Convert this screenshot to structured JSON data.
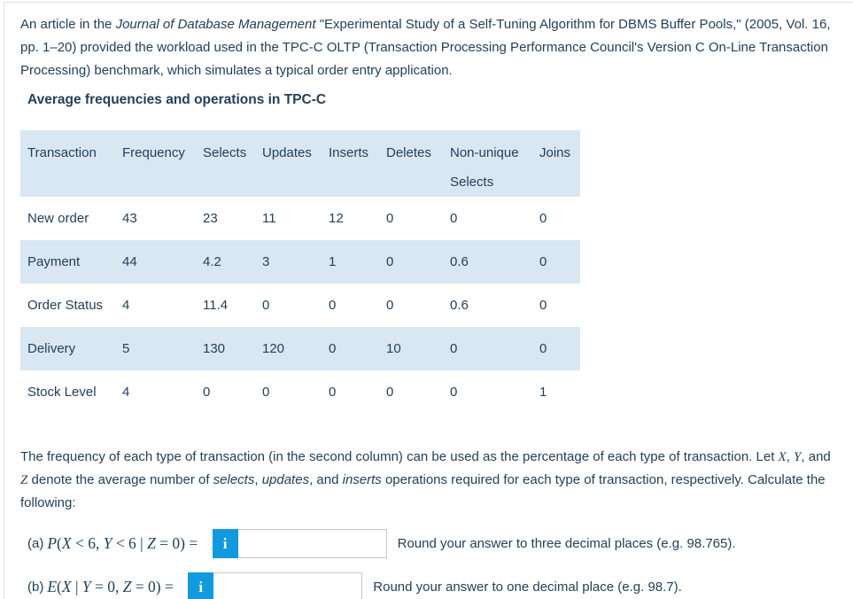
{
  "colors": {
    "text": "#234059",
    "table_stripe": "#d9e7f3",
    "info_button_blue": "#129ade",
    "input_border": "#c8c8c8",
    "page_border": "#e0e0e0"
  },
  "intro": {
    "segments": [
      {
        "t": "An article in the "
      },
      {
        "t": "Journal of Database Management",
        "i": true
      },
      {
        "t": " \"Experimental Study of a Self-Tuning Algorithm for DBMS Buffer Pools,\" (2005, Vol. 16, pp. 1–20) provided the workload used in the TPC-C OLTP (Transaction Processing Performance Council's Version C On-Line Transaction Processing) benchmark, which simulates a typical order entry application."
      }
    ]
  },
  "table_title": "Average frequencies and operations in TPC-C",
  "table": {
    "headers": [
      "Transaction",
      "Frequency",
      "Selects",
      "Updates",
      "Inserts",
      "Deletes",
      "Non-unique Selects",
      "Joins"
    ],
    "rows": [
      [
        "New order",
        "43",
        "23",
        "11",
        "12",
        "0",
        "0",
        "0"
      ],
      [
        "Payment",
        "44",
        "4.2",
        "3",
        "1",
        "0",
        "0.6",
        "0"
      ],
      [
        "Order Status",
        "4",
        "11.4",
        "0",
        "0",
        "0",
        "0.6",
        "0"
      ],
      [
        "Delivery",
        "5",
        "130",
        "120",
        "0",
        "10",
        "0",
        "0"
      ],
      [
        "Stock Level",
        "4",
        "0",
        "0",
        "0",
        "0",
        "0",
        "1"
      ]
    ]
  },
  "body": {
    "segments": [
      {
        "t": "The frequency of each type of transaction (in the second column) can be used as the percentage of each type of transaction. Let "
      },
      {
        "t": "X",
        "i": true,
        "m": true
      },
      {
        "t": ", "
      },
      {
        "t": "Y",
        "i": true,
        "m": true
      },
      {
        "t": ", and "
      },
      {
        "t": "Z",
        "i": true,
        "m": true
      },
      {
        "t": " denote the average number of "
      },
      {
        "t": "selects",
        "i": true
      },
      {
        "t": ", "
      },
      {
        "t": "updates",
        "i": true
      },
      {
        "t": ", and "
      },
      {
        "t": "inserts",
        "i": true
      },
      {
        "t": " operations required for each type of transaction, respectively. Calculate the following:"
      }
    ]
  },
  "questions": {
    "a": {
      "label": "(a)",
      "math": [
        {
          "t": "P",
          "i": true
        },
        {
          "t": "("
        },
        {
          "t": "X",
          "i": true
        },
        {
          "t": " < 6, "
        },
        {
          "t": "Y",
          "i": true
        },
        {
          "t": " < 6 | "
        },
        {
          "t": "Z",
          "i": true
        },
        {
          "t": " = 0) = "
        }
      ],
      "info_icon": "i",
      "value": "",
      "hint": "Round your answer to three decimal places (e.g. 98.765)."
    },
    "b": {
      "label": "(b)",
      "math": [
        {
          "t": "E",
          "i": true
        },
        {
          "t": "("
        },
        {
          "t": "X",
          "i": true
        },
        {
          "t": " | "
        },
        {
          "t": "Y",
          "i": true
        },
        {
          "t": " = 0, "
        },
        {
          "t": "Z",
          "i": true
        },
        {
          "t": " = 0) = "
        }
      ],
      "info_icon": "i",
      "value": "",
      "hint": "Round your answer to one decimal place (e.g. 98.7)."
    }
  }
}
